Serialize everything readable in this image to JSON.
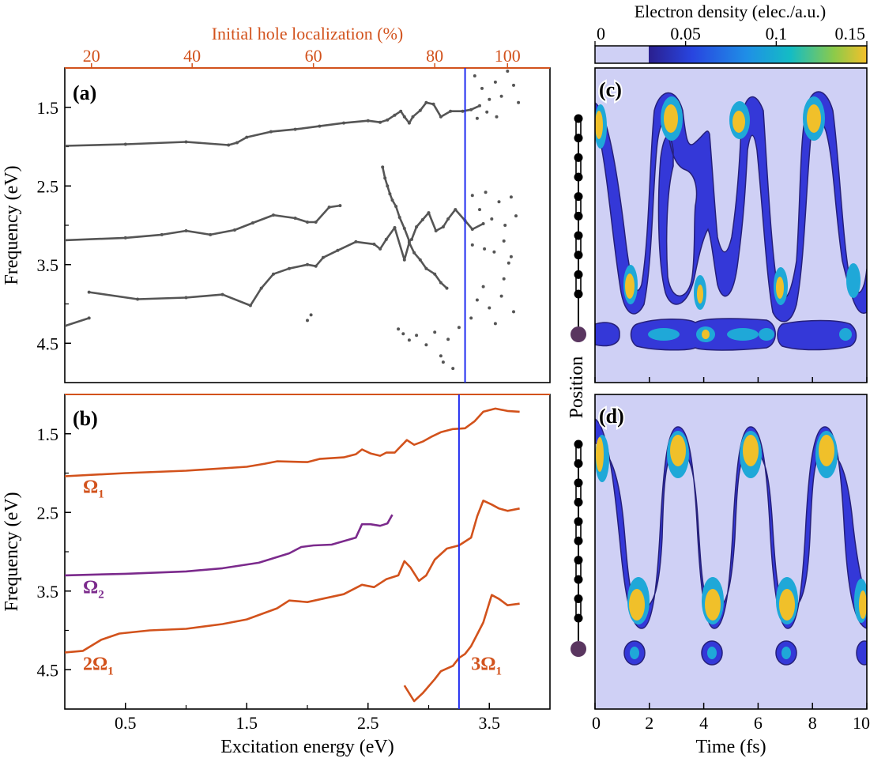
{
  "colors": {
    "gray": "#555555",
    "orange": "#d2521c",
    "purple": "#7b2a8c",
    "blue_line": "#1f2cf0",
    "axis": "#000000",
    "heat_bg": "#cfd0f5",
    "atom_dark": "#5a3660"
  },
  "chart_data": [
    {
      "id": "a",
      "type": "scatter",
      "panel_label": "(a)",
      "ylabel": "Frequency (eV)",
      "ylim": [
        5.0,
        1.0
      ],
      "xlim": [
        0.0,
        4.0
      ],
      "yticks": [
        "1.5",
        "2.5",
        "3.5",
        "4.5"
      ],
      "top_axis": {
        "label": "Initial hole localization (%)",
        "ticks": [
          "20",
          "40",
          "60",
          "80",
          "100"
        ],
        "tick_positions_ev": [
          0.22,
          1.05,
          2.05,
          3.05,
          3.65
        ]
      },
      "vline_ev": 3.3,
      "series": [
        {
          "values": [
            [
              0.0,
              1.99
            ],
            [
              0.5,
              1.97
            ],
            [
              1.0,
              1.94
            ],
            [
              1.35,
              1.98
            ],
            [
              1.42,
              1.95
            ],
            [
              1.5,
              1.88
            ],
            [
              1.7,
              1.81
            ],
            [
              1.9,
              1.78
            ],
            [
              2.1,
              1.74
            ],
            [
              2.3,
              1.7
            ],
            [
              2.5,
              1.67
            ],
            [
              2.6,
              1.69
            ],
            [
              2.66,
              1.66
            ],
            [
              2.72,
              1.6
            ],
            [
              2.77,
              1.55
            ],
            [
              2.8,
              1.62
            ],
            [
              2.84,
              1.7
            ],
            [
              2.87,
              1.62
            ],
            [
              2.93,
              1.54
            ],
            [
              2.98,
              1.44
            ],
            [
              3.04,
              1.46
            ],
            [
              3.1,
              1.62
            ],
            [
              3.18,
              1.55
            ],
            [
              3.28,
              1.55
            ],
            [
              3.35,
              1.53
            ],
            [
              3.42,
              1.48
            ]
          ]
        },
        {
          "values": [
            [
              0.0,
              3.19
            ],
            [
              0.5,
              3.16
            ],
            [
              0.8,
              3.12
            ],
            [
              1.0,
              3.07
            ],
            [
              1.2,
              3.12
            ],
            [
              1.4,
              3.06
            ],
            [
              1.55,
              2.97
            ],
            [
              1.72,
              2.87
            ],
            [
              1.9,
              2.91
            ],
            [
              2.0,
              2.96
            ],
            [
              2.07,
              2.96
            ],
            [
              2.18,
              2.77
            ],
            [
              2.27,
              2.75
            ]
          ]
        },
        {
          "values": [
            [
              2.62,
              2.26
            ],
            [
              2.64,
              2.4
            ],
            [
              2.66,
              2.5
            ],
            [
              2.68,
              2.6
            ],
            [
              2.7,
              2.68
            ],
            [
              2.73,
              2.76
            ],
            [
              2.76,
              2.9
            ],
            [
              2.8,
              3.04
            ],
            [
              2.84,
              3.2
            ],
            [
              2.86,
              3.18
            ],
            [
              2.9,
              3.02
            ],
            [
              2.95,
              2.93
            ],
            [
              3.0,
              2.84
            ],
            [
              3.06,
              3.07
            ],
            [
              3.12,
              3.02
            ],
            [
              3.16,
              2.92
            ],
            [
              3.22,
              2.8
            ],
            [
              3.3,
              2.94
            ],
            [
              3.36,
              3.05
            ],
            [
              3.45,
              2.98
            ]
          ]
        },
        {
          "values": [
            [
              0.2,
              3.85
            ],
            [
              0.6,
              3.94
            ],
            [
              1.0,
              3.92
            ],
            [
              1.3,
              3.88
            ],
            [
              1.53,
              4.02
            ],
            [
              1.62,
              3.8
            ],
            [
              1.72,
              3.62
            ],
            [
              1.85,
              3.55
            ],
            [
              2.0,
              3.5
            ],
            [
              2.07,
              3.52
            ],
            [
              2.13,
              3.41
            ],
            [
              2.25,
              3.32
            ],
            [
              2.4,
              3.21
            ],
            [
              2.55,
              3.24
            ],
            [
              2.6,
              3.3
            ],
            [
              2.65,
              3.18
            ],
            [
              2.72,
              3.03
            ],
            [
              2.8,
              3.44
            ],
            [
              2.84,
              3.22
            ],
            [
              2.88,
              3.35
            ],
            [
              2.93,
              3.44
            ],
            [
              2.98,
              3.55
            ],
            [
              3.05,
              3.62
            ],
            [
              3.1,
              3.73
            ],
            [
              3.15,
              3.8
            ]
          ]
        },
        {
          "values": [
            [
              0.0,
              4.28
            ],
            [
              0.2,
              4.18
            ]
          ]
        },
        {
          "values": [
            [
              2.0,
              4.21
            ],
            [
              2.03,
              4.14
            ],
            [
              2.75,
              4.32
            ],
            [
              2.79,
              4.38
            ],
            [
              2.84,
              4.46
            ],
            [
              2.9,
              4.4
            ],
            [
              2.98,
              4.52
            ],
            [
              3.05,
              4.36
            ],
            [
              3.1,
              4.66
            ],
            [
              3.12,
              4.74
            ],
            [
              3.16,
              4.45
            ],
            [
              3.2,
              4.82
            ],
            [
              3.25,
              4.3
            ]
          ]
        },
        {
          "values": [
            [
              3.35,
              4.18
            ],
            [
              3.4,
              3.95
            ],
            [
              3.45,
              3.78
            ],
            [
              3.5,
              4.05
            ],
            [
              3.55,
              4.25
            ],
            [
              3.6,
              3.9
            ],
            [
              3.62,
              3.68
            ],
            [
              3.66,
              3.48
            ],
            [
              3.7,
              4.1
            ],
            [
              3.36,
              2.62
            ],
            [
              3.42,
              2.8
            ],
            [
              3.47,
              2.58
            ],
            [
              3.52,
              2.92
            ],
            [
              3.58,
              2.7
            ],
            [
              3.63,
              3.0
            ],
            [
              3.68,
              2.64
            ],
            [
              3.72,
              2.88
            ],
            [
              3.38,
              1.1
            ],
            [
              3.44,
              1.26
            ],
            [
              3.5,
              1.4
            ],
            [
              3.55,
              1.18
            ],
            [
              3.6,
              1.36
            ],
            [
              3.65,
              1.04
            ],
            [
              3.7,
              1.22
            ],
            [
              3.74,
              1.44
            ],
            [
              3.4,
              1.64
            ],
            [
              3.48,
              1.56
            ],
            [
              3.56,
              1.62
            ],
            [
              3.36,
              3.25
            ],
            [
              3.46,
              3.3
            ],
            [
              3.54,
              3.34
            ],
            [
              3.62,
              3.2
            ],
            [
              3.68,
              3.4
            ]
          ]
        }
      ]
    },
    {
      "id": "b",
      "type": "scatter",
      "panel_label": "(b)",
      "ylabel": "Frequency (eV)",
      "xlabel": "Excitation energy (eV)",
      "ylim": [
        5.0,
        1.0
      ],
      "xlim": [
        0.0,
        4.0
      ],
      "xticks": [
        "0.5",
        "1.5",
        "2.5",
        "3.5"
      ],
      "yticks": [
        "1.5",
        "2.5",
        "3.5",
        "4.5"
      ],
      "vline_ev": 3.25,
      "series": [
        {
          "name": "Ω1",
          "color_key": "orange",
          "values": [
            [
              0.0,
              2.04
            ],
            [
              0.5,
              2.0
            ],
            [
              1.0,
              1.97
            ],
            [
              1.5,
              1.92
            ],
            [
              1.65,
              1.88
            ],
            [
              1.75,
              1.85
            ],
            [
              2.0,
              1.86
            ],
            [
              2.1,
              1.82
            ],
            [
              2.3,
              1.8
            ],
            [
              2.4,
              1.76
            ],
            [
              2.45,
              1.7
            ],
            [
              2.52,
              1.75
            ],
            [
              2.6,
              1.78
            ],
            [
              2.65,
              1.74
            ],
            [
              2.72,
              1.74
            ],
            [
              2.82,
              1.58
            ],
            [
              2.88,
              1.64
            ],
            [
              2.95,
              1.6
            ],
            [
              3.02,
              1.54
            ],
            [
              3.1,
              1.48
            ],
            [
              3.2,
              1.44
            ],
            [
              3.3,
              1.43
            ],
            [
              3.38,
              1.34
            ],
            [
              3.45,
              1.22
            ],
            [
              3.55,
              1.18
            ],
            [
              3.65,
              1.21
            ],
            [
              3.75,
              1.22
            ]
          ]
        },
        {
          "name": "Ω2",
          "color_key": "purple",
          "values": [
            [
              0.0,
              3.3
            ],
            [
              0.5,
              3.28
            ],
            [
              1.0,
              3.25
            ],
            [
              1.3,
              3.21
            ],
            [
              1.6,
              3.14
            ],
            [
              1.85,
              3.02
            ],
            [
              1.95,
              2.94
            ],
            [
              2.05,
              2.92
            ],
            [
              2.2,
              2.91
            ],
            [
              2.4,
              2.82
            ],
            [
              2.45,
              2.65
            ],
            [
              2.52,
              2.65
            ],
            [
              2.6,
              2.67
            ],
            [
              2.66,
              2.64
            ],
            [
              2.7,
              2.53
            ]
          ]
        },
        {
          "name": "2Ω1",
          "color_key": "orange",
          "values": [
            [
              0.0,
              4.28
            ],
            [
              0.15,
              4.26
            ],
            [
              0.3,
              4.12
            ],
            [
              0.45,
              4.04
            ],
            [
              0.7,
              4.0
            ],
            [
              1.0,
              3.98
            ],
            [
              1.3,
              3.92
            ],
            [
              1.5,
              3.86
            ],
            [
              1.75,
              3.72
            ],
            [
              1.85,
              3.62
            ],
            [
              2.0,
              3.64
            ],
            [
              2.3,
              3.54
            ],
            [
              2.45,
              3.42
            ],
            [
              2.55,
              3.45
            ],
            [
              2.65,
              3.35
            ],
            [
              2.75,
              3.3
            ],
            [
              2.8,
              3.12
            ],
            [
              2.85,
              3.2
            ],
            [
              2.92,
              3.37
            ],
            [
              2.98,
              3.3
            ],
            [
              3.05,
              3.1
            ],
            [
              3.15,
              2.96
            ],
            [
              3.25,
              2.92
            ],
            [
              3.35,
              2.82
            ],
            [
              3.4,
              2.55
            ],
            [
              3.45,
              2.35
            ],
            [
              3.52,
              2.4
            ],
            [
              3.58,
              2.45
            ],
            [
              3.65,
              2.48
            ],
            [
              3.75,
              2.45
            ]
          ]
        },
        {
          "name": "3Ω1",
          "color_key": "orange",
          "values": [
            [
              2.8,
              4.7
            ],
            [
              2.88,
              4.9
            ],
            [
              2.95,
              4.8
            ],
            [
              3.05,
              4.62
            ],
            [
              3.1,
              4.52
            ],
            [
              3.2,
              4.45
            ],
            [
              3.25,
              4.35
            ],
            [
              3.3,
              4.3
            ],
            [
              3.35,
              4.2
            ],
            [
              3.4,
              4.05
            ],
            [
              3.45,
              3.9
            ],
            [
              3.52,
              3.55
            ],
            [
              3.58,
              3.6
            ],
            [
              3.65,
              3.68
            ],
            [
              3.75,
              3.66
            ]
          ]
        }
      ],
      "annotations": [
        {
          "text": "Ω",
          "sub": "1",
          "color_key": "orange",
          "at": [
            0.15,
            2.25
          ]
        },
        {
          "text": "Ω",
          "sub": "2",
          "color_key": "purple",
          "at": [
            0.15,
            3.53
          ]
        },
        {
          "text": "2Ω",
          "sub": "1",
          "color_key": "orange",
          "at": [
            0.15,
            4.5
          ]
        },
        {
          "text": "3Ω",
          "sub": "1",
          "color_key": "orange",
          "at": [
            3.35,
            4.5
          ]
        }
      ]
    },
    {
      "id": "c",
      "type": "heatmap",
      "panel_label": "(c)",
      "xlim": [
        0,
        10
      ],
      "pattern": "oscillating density between top site and bottom chain site with a continuous band near the lower atom"
    },
    {
      "id": "d",
      "type": "heatmap",
      "panel_label": "(d)",
      "xlabel": "Time (fs)",
      "ylabel": "Position",
      "xlim": [
        0,
        10
      ],
      "xticks": [
        "0",
        "2",
        "4",
        "6",
        "8",
        "10"
      ],
      "pattern": "regular sinusoidal oscillation with isolated blobs at the bottom site"
    }
  ],
  "colorbar": {
    "title": "Electron density (elec./a.u.)",
    "ticks": [
      "0",
      "0.05",
      "0.1",
      "0.15"
    ],
    "range": [
      0,
      0.15
    ]
  }
}
